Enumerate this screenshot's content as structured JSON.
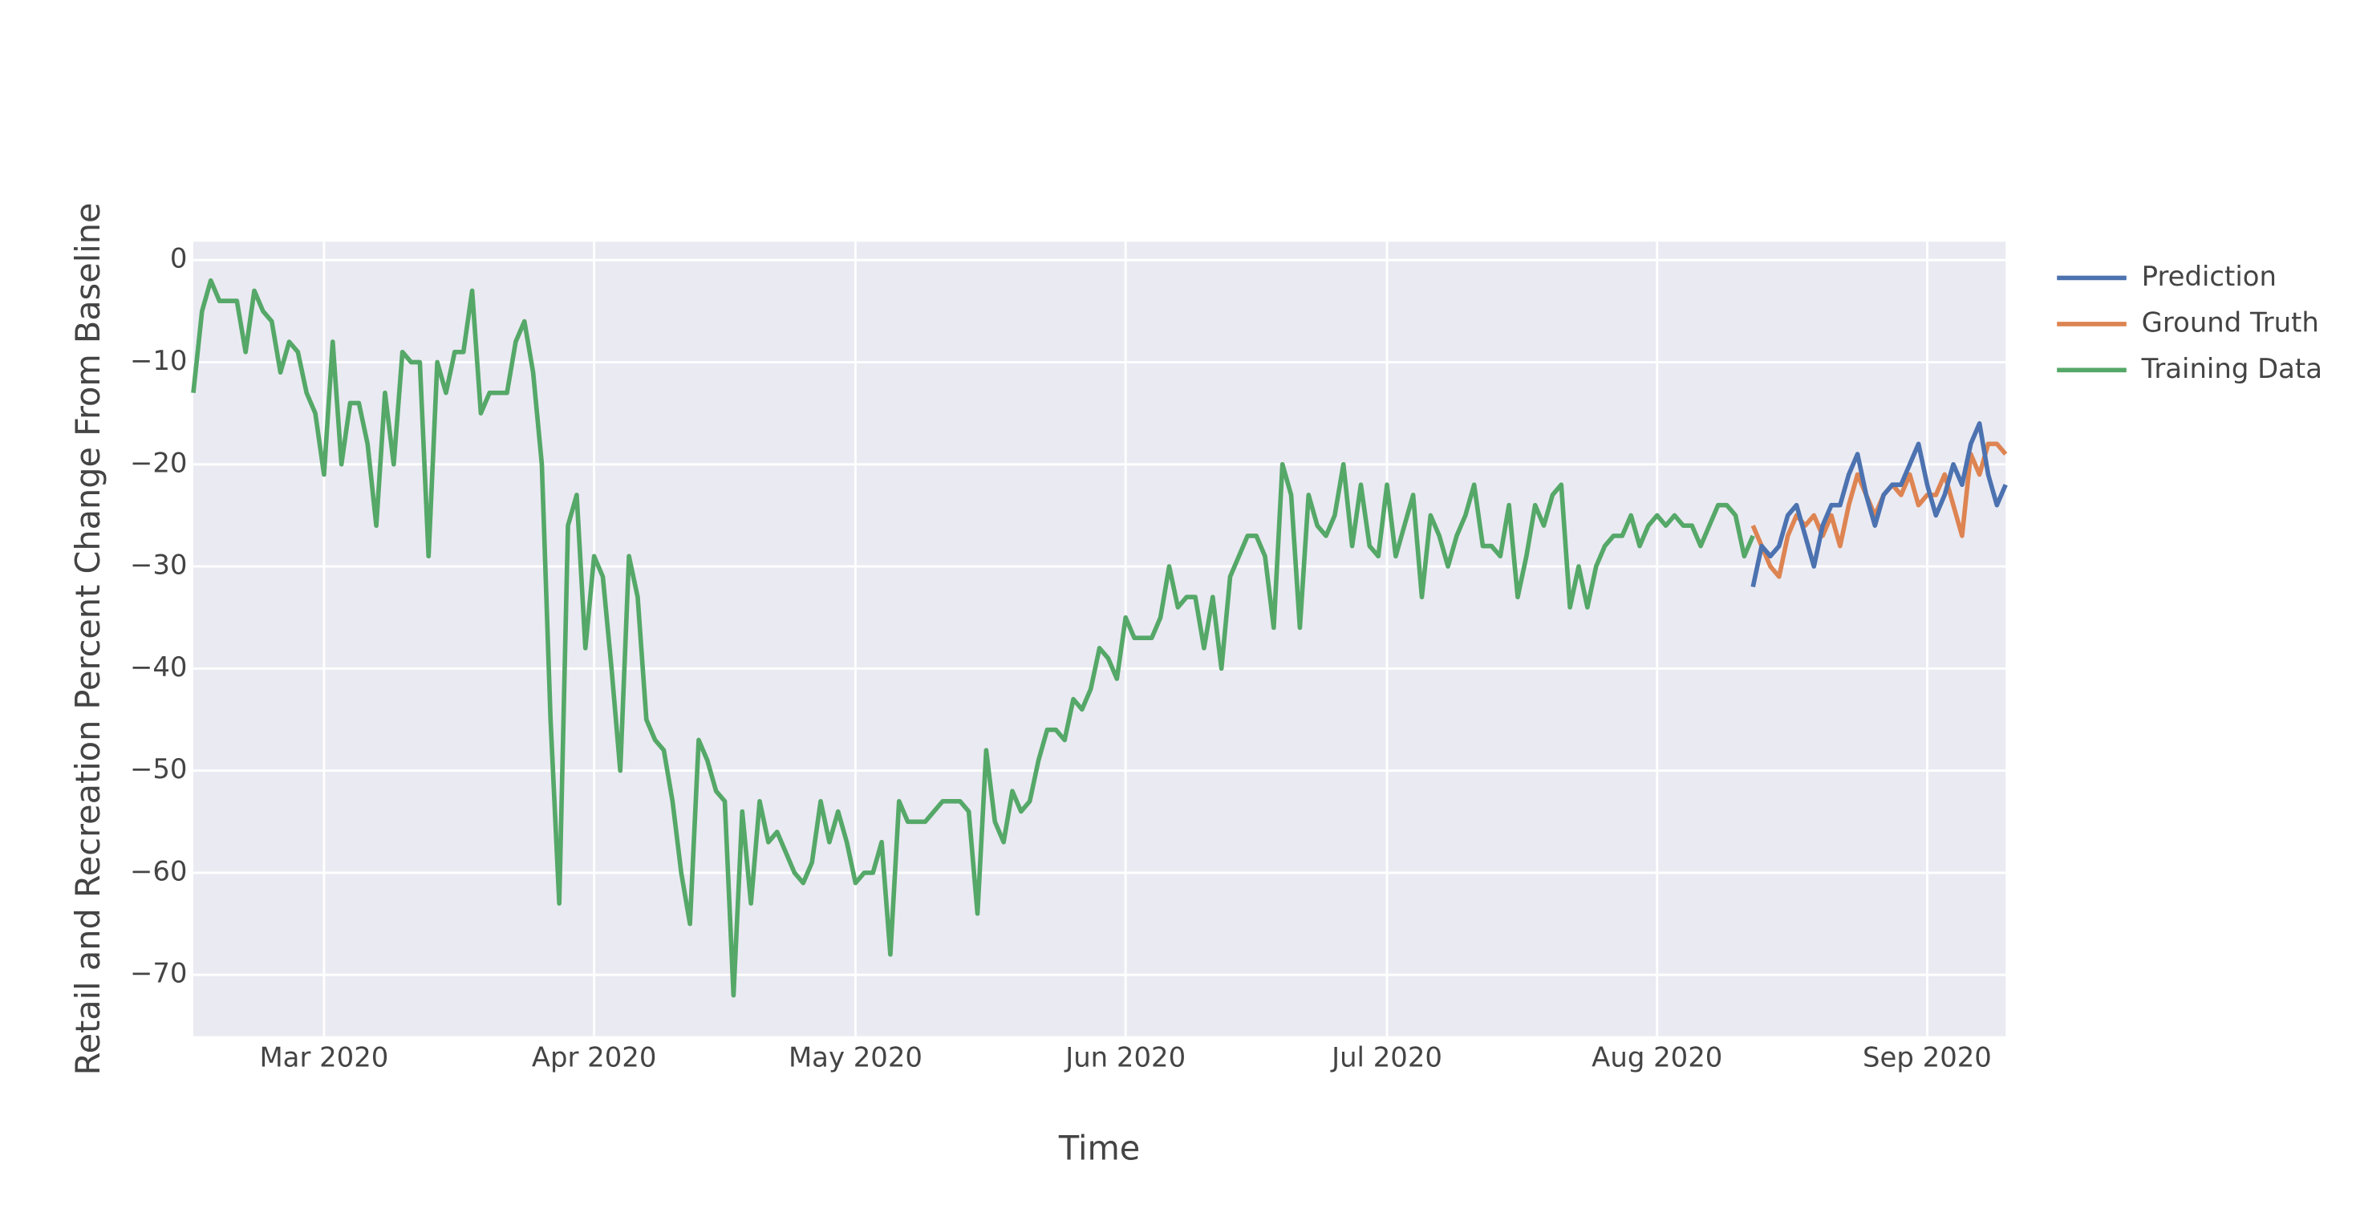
{
  "chart_data": {
    "type": "line",
    "x_label": "Time",
    "y_label": "Retail and Recreation Percent Change From Baseline",
    "xlim": [
      -15,
      193
    ],
    "ylim": [
      -76,
      1.8
    ],
    "xticks": [
      {
        "value": 0,
        "label": "Mar 2020"
      },
      {
        "value": 31,
        "label": "Apr 2020"
      },
      {
        "value": 61,
        "label": "May 2020"
      },
      {
        "value": 92,
        "label": "Jun 2020"
      },
      {
        "value": 122,
        "label": "Jul 2020"
      },
      {
        "value": 153,
        "label": "Aug 2020"
      },
      {
        "value": 184,
        "label": "Sep 2020"
      }
    ],
    "yticks": [
      0,
      {
        "value": -10,
        "label": "−10"
      },
      {
        "value": -20,
        "label": "−20"
      },
      {
        "value": -30,
        "label": "−30"
      },
      {
        "value": -40,
        "label": "−40"
      },
      {
        "value": -50,
        "label": "−50"
      },
      {
        "value": -60,
        "label": "−60"
      },
      {
        "value": -70,
        "label": "−70"
      }
    ],
    "grid": true,
    "legend": "right",
    "series": [
      {
        "name": "Prediction",
        "color": "#4c72b0",
        "x": [
          164,
          165,
          166,
          167,
          168,
          169,
          170,
          171,
          172,
          173,
          174,
          175,
          176,
          177,
          178,
          179,
          180,
          181,
          182,
          183,
          184,
          185,
          186,
          187,
          188,
          189,
          190,
          191,
          192,
          193
        ],
        "values": [
          -32,
          -28,
          -29,
          -28,
          -25,
          -24,
          -27,
          -30,
          -26,
          -24,
          -24,
          -21,
          -19,
          -23,
          -26,
          -23,
          -22,
          -22,
          -20,
          -18,
          -22,
          -25,
          -23,
          -20,
          -22,
          -18,
          -16,
          -21,
          -24,
          -22
        ]
      },
      {
        "name": "Ground Truth",
        "color": "#dd8452",
        "x": [
          164,
          165,
          166,
          167,
          168,
          169,
          170,
          171,
          172,
          173,
          174,
          175,
          176,
          177,
          178,
          179,
          180,
          181,
          182,
          183,
          184,
          185,
          186,
          187,
          188,
          189,
          190,
          191,
          192,
          193
        ],
        "values": [
          -26,
          -28,
          -30,
          -31,
          -27,
          -25,
          -26,
          -25,
          -27,
          -25,
          -28,
          -24,
          -21,
          -23,
          -25,
          -23,
          -22,
          -23,
          -21,
          -24,
          -23,
          -23,
          -21,
          -24,
          -27,
          -19,
          -21,
          -18,
          -18,
          -19
        ]
      },
      {
        "name": "Training Data",
        "color": "#55a868",
        "x": [
          -15,
          -14,
          -13,
          -12,
          -11,
          -10,
          -9,
          -8,
          -7,
          -6,
          -5,
          -4,
          -3,
          -2,
          -1,
          0,
          1,
          2,
          3,
          4,
          5,
          6,
          7,
          8,
          9,
          10,
          11,
          12,
          13,
          14,
          15,
          16,
          17,
          18,
          19,
          20,
          21,
          22,
          23,
          24,
          25,
          26,
          27,
          28,
          29,
          30,
          31,
          32,
          33,
          34,
          35,
          36,
          37,
          38,
          39,
          40,
          41,
          42,
          43,
          44,
          45,
          46,
          47,
          48,
          49,
          50,
          51,
          52,
          53,
          54,
          55,
          56,
          57,
          58,
          59,
          60,
          61,
          62,
          63,
          64,
          65,
          66,
          67,
          68,
          69,
          70,
          71,
          72,
          73,
          74,
          75,
          76,
          77,
          78,
          79,
          80,
          81,
          82,
          83,
          84,
          85,
          86,
          87,
          88,
          89,
          90,
          91,
          92,
          93,
          94,
          95,
          96,
          97,
          98,
          99,
          100,
          101,
          102,
          103,
          104,
          105,
          106,
          107,
          108,
          109,
          110,
          111,
          112,
          113,
          114,
          115,
          116,
          117,
          118,
          119,
          120,
          121,
          122,
          123,
          124,
          125,
          126,
          127,
          128,
          129,
          130,
          131,
          132,
          133,
          134,
          135,
          136,
          137,
          138,
          139,
          140,
          141,
          142,
          143,
          144,
          145,
          146,
          147,
          148,
          149,
          150,
          151,
          152,
          153,
          154,
          155,
          156,
          157,
          158,
          159,
          160,
          161,
          162,
          163,
          164
        ],
        "values": [
          -13,
          -5,
          -2,
          -4,
          -4,
          -4,
          -9,
          -3,
          -5,
          -6,
          -11,
          -8,
          -9,
          -13,
          -15,
          -21,
          -8,
          -20,
          -14,
          -14,
          -18,
          -26,
          -13,
          -20,
          -9,
          -10,
          -10,
          -29,
          -10,
          -13,
          -9,
          -9,
          -3,
          -15,
          -13,
          -13,
          -13,
          -8,
          -6,
          -11,
          -20,
          -45,
          -63,
          -26,
          -23,
          -38,
          -29,
          -31,
          -40,
          -50,
          -29,
          -33,
          -45,
          -47,
          -48,
          -53,
          -60,
          -65,
          -47,
          -49,
          -52,
          -53,
          -72,
          -54,
          -63,
          -53,
          -57,
          -56,
          -58,
          -60,
          -61,
          -59,
          -53,
          -57,
          -54,
          -57,
          -61,
          -60,
          -60,
          -57,
          -68,
          -53,
          -55,
          -55,
          -55,
          -54,
          -53,
          -53,
          -53,
          -54,
          -64,
          -48,
          -55,
          -57,
          -52,
          -54,
          -53,
          -49,
          -46,
          -46,
          -47,
          -43,
          -44,
          -42,
          -38,
          -39,
          -41,
          -35,
          -37,
          -37,
          -37,
          -35,
          -30,
          -34,
          -33,
          -33,
          -38,
          -33,
          -40,
          -31,
          -29,
          -27,
          -27,
          -29,
          -36,
          -20,
          -23,
          -36,
          -23,
          -26,
          -27,
          -25,
          -20,
          -28,
          -22,
          -28,
          -29,
          -22,
          -29,
          -26,
          -23,
          -33,
          -25,
          -27,
          -30,
          -27,
          -25,
          -22,
          -28,
          -28,
          -29,
          -24,
          -33,
          -29,
          -24,
          -26,
          -23,
          -22,
          -34,
          -30,
          -34,
          -30,
          -28,
          -27,
          -27,
          -25,
          -28,
          -26,
          -25,
          -26,
          -25,
          -26,
          -26,
          -28,
          -26,
          -24,
          -24,
          -25,
          -29,
          -27
        ]
      }
    ]
  }
}
